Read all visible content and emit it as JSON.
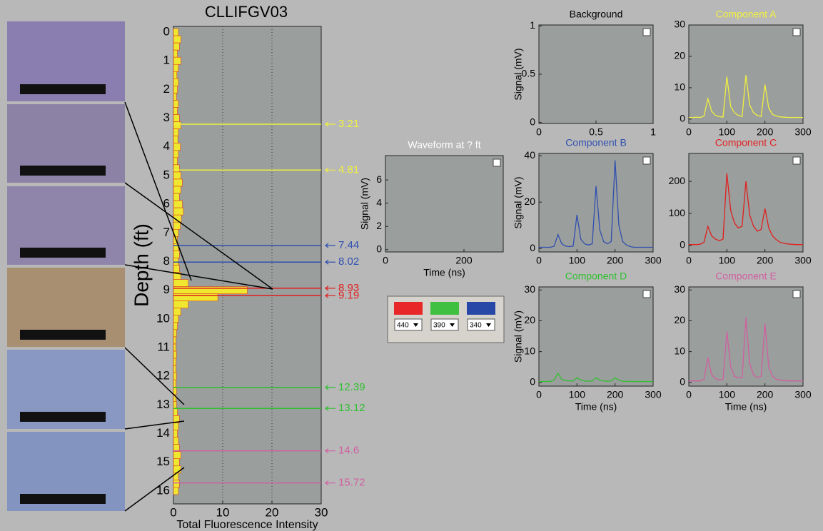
{
  "chart_data": [
    {
      "type": "profile",
      "title": "CLLIFGV03",
      "x_label": "Total Fluorescence Intensity",
      "y_label": "Depth (ft)",
      "xlim": [
        0,
        30
      ],
      "xticks": [
        0,
        10,
        20,
        30
      ],
      "ylim": [
        -0.2,
        16.45
      ],
      "yticks": [
        0,
        1,
        2,
        3,
        4,
        5,
        6,
        7,
        8,
        9,
        10,
        11,
        12,
        13,
        14,
        15,
        16
      ],
      "y_inverted": true,
      "grid": true,
      "color": "#f0e830",
      "depth": [
        0,
        0.25,
        0.5,
        0.75,
        1,
        1.25,
        1.5,
        1.75,
        2,
        2.25,
        2.5,
        2.75,
        3,
        3.25,
        3.5,
        3.75,
        4,
        4.25,
        4.5,
        4.75,
        5,
        5.25,
        5.5,
        5.75,
        6,
        6.25,
        6.5,
        6.75,
        7,
        7.25,
        7.5,
        7.75,
        8,
        8.25,
        8.5,
        8.75,
        9,
        9.25,
        9.5,
        9.75,
        10,
        10.25,
        10.5,
        10.75,
        11,
        11.25,
        11.5,
        11.75,
        12,
        12.25,
        12.5,
        12.75,
        13,
        13.25,
        13.5,
        13.75,
        14,
        14.25,
        14.5,
        14.75,
        15,
        15.25,
        15.5,
        15.75,
        16
      ],
      "values": [
        1,
        1.5,
        1.2,
        0.8,
        1.5,
        1,
        0.7,
        1,
        0.8,
        0.6,
        1,
        0.8,
        1.2,
        1.5,
        1,
        0.9,
        1.4,
        1,
        0.8,
        1.2,
        1.5,
        1.8,
        1.5,
        1.2,
        1.8,
        2,
        1.6,
        1.4,
        1,
        0.8,
        1,
        1.2,
        1,
        1.2,
        1.5,
        3,
        15,
        9,
        3,
        1.5,
        1,
        0.8,
        0.6,
        0.5,
        0.5,
        0.6,
        0.5,
        0.5,
        0.6,
        0.5,
        0.6,
        0.5,
        0.6,
        0.8,
        1.2,
        1,
        0.8,
        1,
        1.2,
        1.5,
        1.2,
        1.5,
        1,
        1.2,
        1
      ],
      "markers": [
        {
          "value": 3.21,
          "color": "#f0f040"
        },
        {
          "value": 4.81,
          "color": "#f0f040"
        },
        {
          "value": 7.44,
          "color": "#3050b0"
        },
        {
          "value": 8.02,
          "color": "#3050b0"
        },
        {
          "value": 8.93,
          "color": "#e02020"
        },
        {
          "value": 9.19,
          "color": "#e02020"
        },
        {
          "value": 12.39,
          "color": "#30c030"
        },
        {
          "value": 13.12,
          "color": "#30c030"
        },
        {
          "value": 14.6,
          "color": "#d060a0"
        },
        {
          "value": 15.72,
          "color": "#d060a0"
        }
      ]
    },
    {
      "type": "line",
      "title": "Waveform at ? ft",
      "title_color": "#ffffff",
      "x_label": "Time (ns)",
      "y_label": "Signal (mV)",
      "xlim": [
        0,
        300
      ],
      "xticks": [
        0,
        200
      ],
      "ylim": [
        -0.2,
        8.1
      ],
      "yticks": [
        0,
        2,
        4,
        6
      ]
    },
    {
      "type": "line",
      "title": "Background",
      "title_color": "#000000",
      "y_label": "Signal (mV)",
      "xlim": [
        0,
        1
      ],
      "xticks": [
        0,
        0.5,
        1
      ],
      "ylim": [
        -0.01,
        1.01
      ],
      "yticks": [
        0,
        0.5,
        1
      ]
    },
    {
      "type": "line",
      "title": "Component A",
      "title_color": "#f0f040",
      "xlim": [
        0,
        300
      ],
      "xticks": [
        0,
        100,
        200,
        300
      ],
      "ylim": [
        -1.4,
        30
      ],
      "yticks": [
        0,
        10,
        20,
        30
      ],
      "x": [
        0,
        10,
        20,
        30,
        40,
        50,
        60,
        70,
        80,
        90,
        100,
        110,
        120,
        130,
        140,
        150,
        160,
        170,
        180,
        190,
        200,
        210,
        220,
        230,
        240,
        250,
        260,
        270,
        280,
        290,
        300
      ],
      "series": [
        {
          "color": "#f0f040",
          "values": [
            0.5,
            0.5,
            0.6,
            0.5,
            1,
            6.5,
            2.5,
            1.2,
            0.8,
            0.6,
            13.5,
            4,
            2,
            1.2,
            0.8,
            14,
            4.5,
            2,
            1.2,
            0.8,
            11,
            3.5,
            1.5,
            1,
            0.7,
            0.6,
            0.5,
            0.5,
            0.5,
            0.5,
            0.5
          ]
        }
      ]
    },
    {
      "type": "line",
      "title": "Component B",
      "title_color": "#3050b0",
      "y_label": "Signal (mV)",
      "xlim": [
        0,
        300
      ],
      "xticks": [
        0,
        100,
        200,
        300
      ],
      "ylim": [
        -1.5,
        41
      ],
      "yticks": [
        0,
        20,
        40
      ],
      "x": [
        0,
        10,
        20,
        30,
        40,
        50,
        60,
        70,
        80,
        90,
        100,
        110,
        120,
        130,
        140,
        150,
        160,
        170,
        180,
        190,
        200,
        210,
        220,
        230,
        240,
        250,
        260,
        270,
        280,
        290,
        300
      ],
      "series": [
        {
          "color": "#3050b0",
          "values": [
            0.5,
            0.5,
            0.5,
            0.5,
            1,
            6,
            2,
            1,
            0.8,
            1,
            14.5,
            4,
            2,
            1.5,
            2,
            27,
            8,
            3,
            2,
            3,
            38,
            10,
            3,
            1.5,
            0.8,
            0.5,
            0.5,
            0.5,
            0.5,
            0.5,
            0.5
          ]
        }
      ]
    },
    {
      "type": "line",
      "title": "Component C",
      "title_color": "#e02020",
      "xlim": [
        0,
        300
      ],
      "xticks": [
        0,
        100,
        200,
        300
      ],
      "ylim": [
        -20,
        287
      ],
      "yticks": [
        0,
        100,
        200
      ],
      "x": [
        0,
        10,
        20,
        30,
        40,
        50,
        60,
        70,
        80,
        90,
        100,
        110,
        120,
        130,
        140,
        150,
        160,
        170,
        180,
        190,
        200,
        210,
        220,
        230,
        240,
        250,
        260,
        270,
        280,
        290,
        300
      ],
      "series": [
        {
          "color": "#e02020",
          "values": [
            3,
            3,
            3,
            4,
            10,
            60,
            30,
            20,
            15,
            20,
            225,
            110,
            70,
            55,
            60,
            200,
            95,
            60,
            45,
            50,
            115,
            55,
            30,
            18,
            10,
            7,
            5,
            4,
            3,
            3,
            3
          ]
        }
      ]
    },
    {
      "type": "line",
      "title": "Component D",
      "title_color": "#30c030",
      "x_label": "Time (ns)",
      "y_label": "Signal (mV)",
      "xlim": [
        0,
        300
      ],
      "xticks": [
        0,
        100,
        200,
        300
      ],
      "ylim": [
        -1.2,
        31
      ],
      "yticks": [
        0,
        10,
        20,
        30
      ],
      "x": [
        0,
        10,
        20,
        30,
        40,
        50,
        60,
        70,
        80,
        90,
        100,
        110,
        120,
        130,
        140,
        150,
        160,
        170,
        180,
        190,
        200,
        210,
        220,
        230,
        240,
        250,
        260,
        270,
        280,
        290,
        300
      ],
      "series": [
        {
          "color": "#30c030",
          "values": [
            0.3,
            0.3,
            0.3,
            0.3,
            0.8,
            3,
            1,
            0.6,
            0.5,
            0.5,
            1.5,
            0.8,
            0.5,
            0.4,
            0.5,
            1.5,
            0.8,
            0.5,
            0.4,
            0.5,
            1.5,
            0.7,
            0.4,
            0.3,
            0.3,
            0.3,
            0.3,
            0.3,
            0.3,
            0.3,
            0.3
          ]
        }
      ]
    },
    {
      "type": "line",
      "title": "Component E",
      "title_color": "#d060a0",
      "x_label": "Time (ns)",
      "xlim": [
        0,
        300
      ],
      "xticks": [
        0,
        100,
        200,
        300
      ],
      "ylim": [
        -1.2,
        31
      ],
      "yticks": [
        0,
        10,
        20,
        30
      ],
      "x": [
        0,
        10,
        20,
        30,
        40,
        50,
        60,
        70,
        80,
        90,
        100,
        110,
        120,
        130,
        140,
        150,
        160,
        170,
        180,
        190,
        200,
        210,
        220,
        230,
        240,
        250,
        260,
        270,
        280,
        290,
        300
      ],
      "series": [
        {
          "color": "#d060a0",
          "values": [
            0.5,
            0.5,
            0.5,
            0.5,
            1,
            8,
            2.5,
            1.2,
            0.8,
            1,
            16.5,
            5,
            2,
            1.5,
            1.5,
            21,
            6,
            2.5,
            1.5,
            2,
            19,
            5,
            2,
            1,
            0.7,
            0.6,
            0.5,
            0.5,
            0.5,
            0.5,
            0.5
          ]
        }
      ]
    }
  ],
  "color_selector": {
    "channels": [
      {
        "color": "#e82828",
        "wavelength": "440"
      },
      {
        "color": "#40c040",
        "wavelength": "390"
      },
      {
        "color": "#2848a8",
        "wavelength": "340"
      }
    ]
  }
}
